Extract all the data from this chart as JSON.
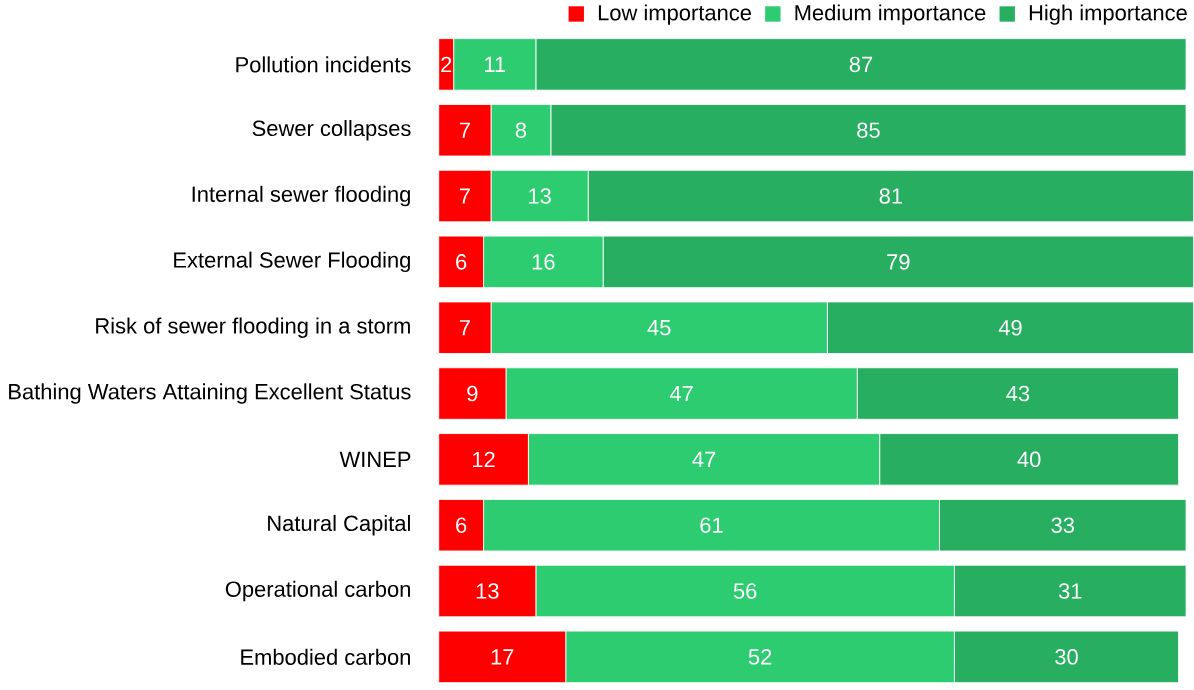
{
  "chart_data": {
    "type": "bar",
    "orientation": "horizontal",
    "stacked": true,
    "data_labels": true,
    "legend": "top right",
    "tick_labels": "y",
    "categories": [
      "Pollution incidents",
      "Sewer collapses",
      "Internal sewer flooding",
      "External Sewer Flooding",
      "Risk of sewer flooding in a storm",
      "Bathing Waters Attaining Excellent Status",
      "WINEP",
      "Natural Capital",
      "Operational carbon",
      "Embodied carbon"
    ],
    "series": [
      {
        "name": "Low importance",
        "color": "#ff0000",
        "values": [
          2,
          7,
          7,
          6,
          7,
          9,
          12,
          6,
          13,
          17
        ]
      },
      {
        "name": "Medium importance",
        "color": "#2ecc71",
        "values": [
          11,
          8,
          13,
          16,
          45,
          47,
          47,
          61,
          56,
          52
        ]
      },
      {
        "name": "High importance",
        "color": "#27ae60",
        "values": [
          87,
          85,
          81,
          79,
          49,
          43,
          40,
          33,
          31,
          30
        ]
      }
    ]
  }
}
